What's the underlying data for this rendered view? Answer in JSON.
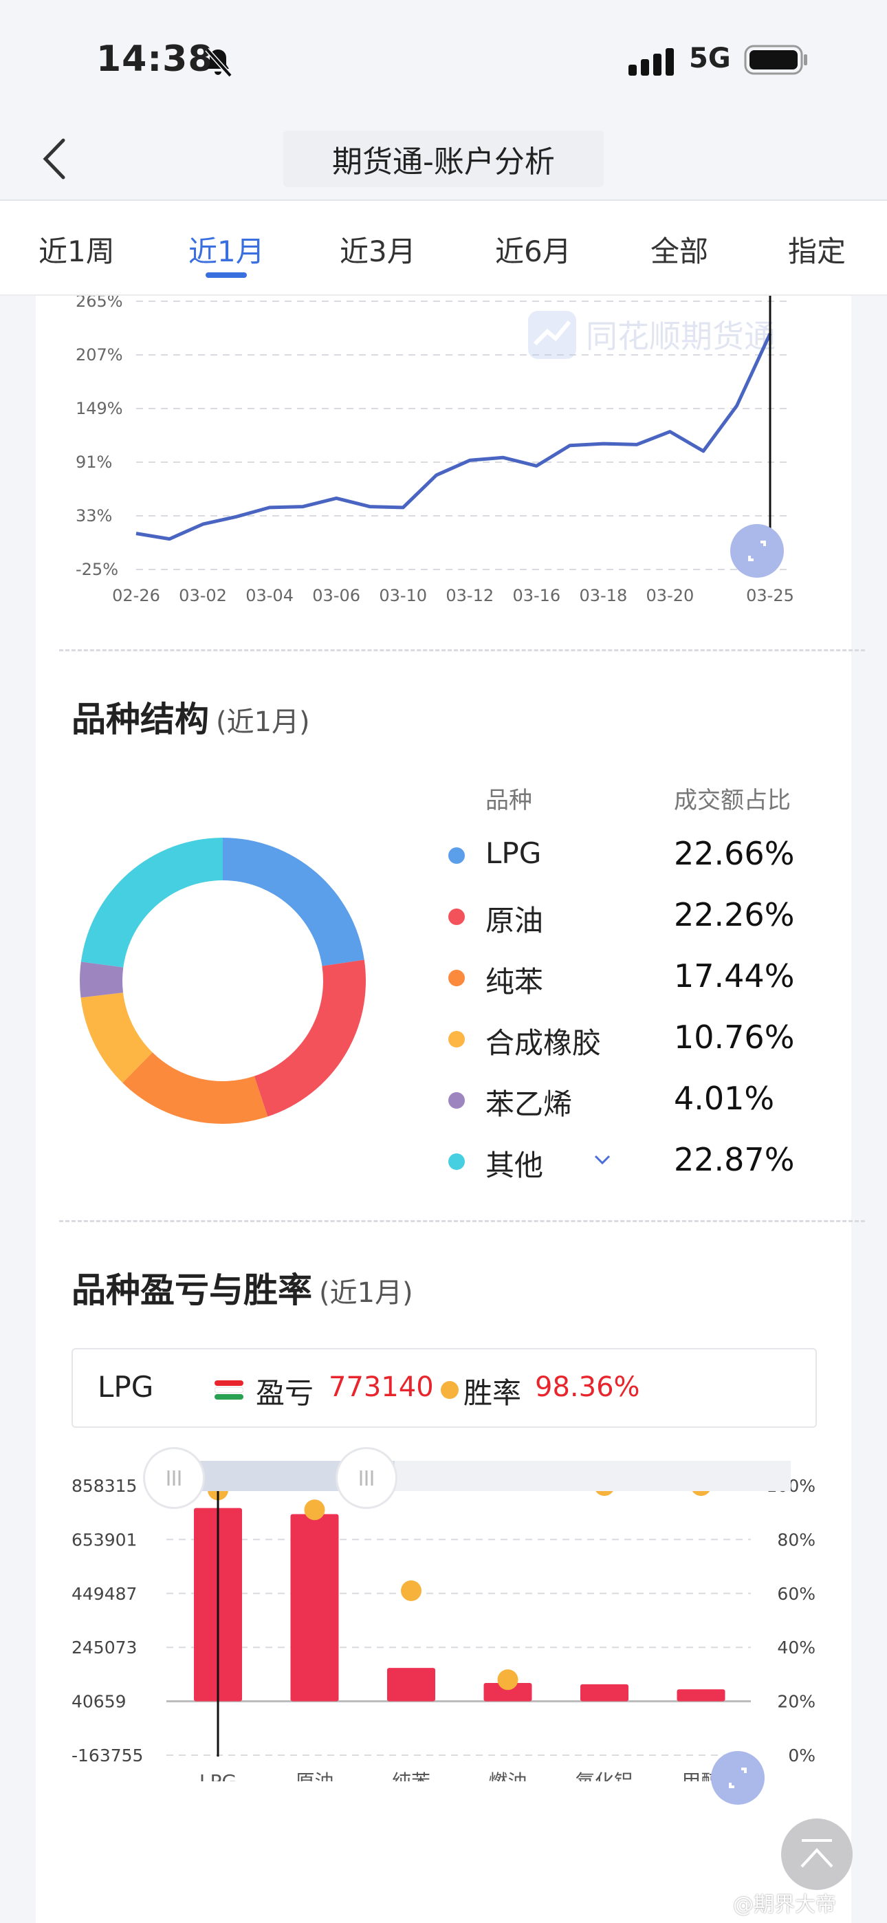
{
  "status_bar": {
    "time": "14:38",
    "network": "5G"
  },
  "nav": {
    "title": "期货通-账户分析"
  },
  "tabs": [
    "近1周",
    "近1月",
    "近3月",
    "近6月",
    "全部",
    "指定"
  ],
  "active_tab": "近1月",
  "return_chart": {
    "watermark": "同花顺期货通",
    "y_ticks": [
      "265%",
      "207%",
      "149%",
      "91%",
      "33%",
      "-25%"
    ],
    "x_ticks": [
      "02-26",
      "03-02",
      "03-04",
      "03-06",
      "03-10",
      "03-12",
      "03-16",
      "03-18",
      "03-20",
      "03-25"
    ],
    "values": [
      14,
      8,
      24,
      32,
      42,
      43,
      52,
      43,
      42,
      77,
      93,
      96,
      87,
      109,
      111,
      110,
      124,
      103,
      152,
      230
    ],
    "ylim": [
      -25,
      265
    ],
    "line_color": "#4a65c1"
  },
  "variety_structure": {
    "title": "品种结构",
    "subtitle": "(近1月)",
    "col_name": "品种",
    "col_pct": "成交额占比",
    "items": [
      {
        "name": "LPG",
        "pct": "22.66%",
        "value": 22.66,
        "color": "#5b9ee9"
      },
      {
        "name": "原油",
        "pct": "22.26%",
        "value": 22.26,
        "color": "#f4525a"
      },
      {
        "name": "纯苯",
        "pct": "17.44%",
        "value": 17.44,
        "color": "#fb8a3d"
      },
      {
        "name": "合成橡胶",
        "pct": "10.76%",
        "value": 10.76,
        "color": "#fdb544"
      },
      {
        "name": "苯乙烯",
        "pct": "4.01%",
        "value": 4.01,
        "color": "#9d86bf"
      },
      {
        "name": "其他",
        "pct": "22.87%",
        "value": 22.87,
        "color": "#46cfe0"
      }
    ]
  },
  "pnl_section": {
    "title": "品种盈亏与胜率",
    "subtitle": "(近1月)",
    "tooltip": {
      "category": "LPG",
      "pnl_label": "盈亏",
      "pnl_value": "773140",
      "winrate_label": "胜率",
      "winrate_value": "98.36%"
    },
    "chart_data": {
      "type": "bar",
      "categories": [
        "LPG",
        "原油",
        "纯苯",
        "燃油",
        "氧化铝",
        "甲醇"
      ],
      "series": [
        {
          "name": "盈亏",
          "values": [
            773140,
            750000,
            167000,
            110000,
            105000,
            86000
          ]
        },
        {
          "name": "胜率",
          "values": [
            98.36,
            91,
            61,
            28,
            100,
            100
          ]
        }
      ],
      "y_left_ticks": [
        "858315",
        "653901",
        "449487",
        "245073",
        "40659",
        "-163755"
      ],
      "y_right_ticks": [
        "100%",
        "80%",
        "60%",
        "40%",
        "20%",
        "0%"
      ],
      "ylim_left": [
        -163755,
        858315
      ],
      "ylim_right": [
        0,
        100
      ],
      "bar_color": "#ec3151",
      "dot_color": "#f7b23b"
    }
  },
  "footer": {
    "watermark": "@期界大帝"
  }
}
